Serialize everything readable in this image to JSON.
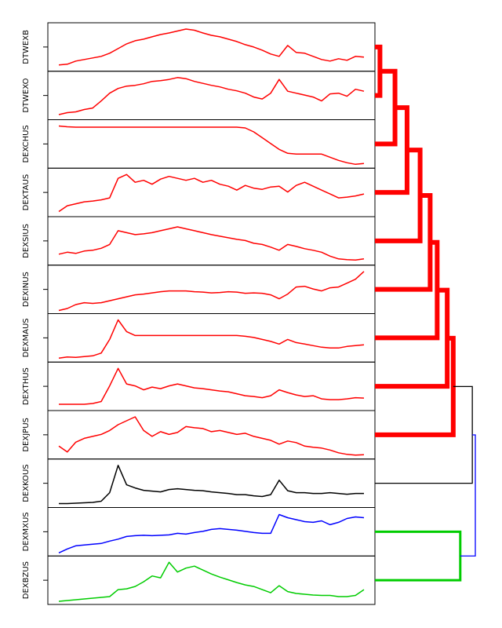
{
  "chart_data": {
    "type": "line",
    "title": "",
    "xlabel": "",
    "ylabel": "",
    "grid": false,
    "panels": [
      {
        "name": "DTWEXB",
        "color": "#ff0000",
        "values": [
          0.08,
          0.1,
          0.18,
          0.22,
          0.26,
          0.3,
          0.38,
          0.5,
          0.62,
          0.7,
          0.74,
          0.8,
          0.86,
          0.9,
          0.95,
          1.0,
          0.97,
          0.9,
          0.84,
          0.8,
          0.74,
          0.68,
          0.6,
          0.54,
          0.46,
          0.36,
          0.3,
          0.58,
          0.4,
          0.38,
          0.3,
          0.22,
          0.18,
          0.24,
          0.2,
          0.3,
          0.28
        ]
      },
      {
        "name": "DTWEXO",
        "color": "#ff0000",
        "values": [
          0.05,
          0.1,
          0.12,
          0.18,
          0.22,
          0.4,
          0.6,
          0.72,
          0.78,
          0.8,
          0.84,
          0.9,
          0.92,
          0.95,
          1.0,
          0.97,
          0.9,
          0.85,
          0.8,
          0.76,
          0.7,
          0.66,
          0.6,
          0.5,
          0.45,
          0.6,
          0.95,
          0.65,
          0.6,
          0.55,
          0.5,
          0.4,
          0.58,
          0.6,
          0.52,
          0.7,
          0.65
        ]
      },
      {
        "name": "DEXCHUS",
        "color": "#ff0000",
        "values": [
          1.0,
          0.98,
          0.97,
          0.97,
          0.97,
          0.97,
          0.97,
          0.97,
          0.97,
          0.97,
          0.97,
          0.97,
          0.97,
          0.97,
          0.97,
          0.97,
          0.97,
          0.97,
          0.97,
          0.97,
          0.97,
          0.97,
          0.95,
          0.85,
          0.7,
          0.55,
          0.4,
          0.3,
          0.28,
          0.28,
          0.28,
          0.28,
          0.2,
          0.12,
          0.06,
          0.02,
          0.04
        ]
      },
      {
        "name": "DEXTAUS",
        "color": "#ff0000",
        "values": [
          0.05,
          0.2,
          0.25,
          0.3,
          0.32,
          0.35,
          0.4,
          0.9,
          1.0,
          0.8,
          0.85,
          0.75,
          0.88,
          0.95,
          0.9,
          0.85,
          0.9,
          0.8,
          0.85,
          0.75,
          0.7,
          0.6,
          0.72,
          0.65,
          0.62,
          0.68,
          0.7,
          0.55,
          0.72,
          0.8,
          0.7,
          0.6,
          0.5,
          0.4,
          0.42,
          0.45,
          0.5
        ]
      },
      {
        "name": "DEXSIUS",
        "color": "#ff0000",
        "values": [
          0.2,
          0.25,
          0.22,
          0.28,
          0.3,
          0.35,
          0.45,
          0.8,
          0.75,
          0.7,
          0.72,
          0.75,
          0.8,
          0.85,
          0.9,
          0.85,
          0.8,
          0.75,
          0.7,
          0.66,
          0.62,
          0.58,
          0.55,
          0.48,
          0.45,
          0.38,
          0.3,
          0.45,
          0.4,
          0.34,
          0.3,
          0.25,
          0.15,
          0.08,
          0.06,
          0.05,
          0.08
        ]
      },
      {
        "name": "DEXINUS",
        "color": "#ff0000",
        "values": [
          0.0,
          0.05,
          0.15,
          0.2,
          0.18,
          0.2,
          0.25,
          0.3,
          0.35,
          0.4,
          0.42,
          0.45,
          0.48,
          0.5,
          0.5,
          0.5,
          0.48,
          0.47,
          0.45,
          0.46,
          0.48,
          0.47,
          0.44,
          0.45,
          0.44,
          0.4,
          0.3,
          0.42,
          0.6,
          0.62,
          0.55,
          0.5,
          0.58,
          0.6,
          0.7,
          0.8,
          1.0
        ]
      },
      {
        "name": "DEXMAUS",
        "color": "#ff0000",
        "values": [
          0.02,
          0.05,
          0.04,
          0.06,
          0.08,
          0.15,
          0.5,
          1.0,
          0.7,
          0.6,
          0.6,
          0.6,
          0.6,
          0.6,
          0.6,
          0.6,
          0.6,
          0.6,
          0.6,
          0.6,
          0.6,
          0.6,
          0.58,
          0.55,
          0.5,
          0.45,
          0.38,
          0.5,
          0.42,
          0.38,
          0.34,
          0.3,
          0.28,
          0.28,
          0.32,
          0.34,
          0.36
        ]
      },
      {
        "name": "DEXTHUS",
        "color": "#ff0000",
        "values": [
          0.08,
          0.08,
          0.08,
          0.08,
          0.1,
          0.15,
          0.55,
          1.0,
          0.6,
          0.55,
          0.45,
          0.52,
          0.48,
          0.55,
          0.6,
          0.55,
          0.5,
          0.48,
          0.45,
          0.42,
          0.4,
          0.35,
          0.3,
          0.28,
          0.25,
          0.3,
          0.45,
          0.38,
          0.32,
          0.28,
          0.3,
          0.22,
          0.2,
          0.2,
          0.22,
          0.25,
          0.24
        ]
      },
      {
        "name": "DEXJPUS",
        "color": "#ff0000",
        "values": [
          0.25,
          0.1,
          0.35,
          0.45,
          0.5,
          0.55,
          0.65,
          0.8,
          0.9,
          1.0,
          0.65,
          0.5,
          0.62,
          0.55,
          0.6,
          0.75,
          0.72,
          0.7,
          0.62,
          0.65,
          0.6,
          0.55,
          0.58,
          0.5,
          0.45,
          0.4,
          0.3,
          0.38,
          0.34,
          0.25,
          0.22,
          0.2,
          0.15,
          0.08,
          0.04,
          0.02,
          0.03
        ]
      },
      {
        "name": "DEXKOUS",
        "color": "#000000",
        "values": [
          0.02,
          0.02,
          0.03,
          0.04,
          0.05,
          0.08,
          0.3,
          1.0,
          0.5,
          0.42,
          0.36,
          0.34,
          0.32,
          0.38,
          0.4,
          0.38,
          0.36,
          0.35,
          0.32,
          0.3,
          0.28,
          0.25,
          0.25,
          0.22,
          0.2,
          0.25,
          0.62,
          0.35,
          0.3,
          0.3,
          0.28,
          0.28,
          0.3,
          0.28,
          0.26,
          0.28,
          0.28
        ]
      },
      {
        "name": "DEXMXUS",
        "color": "#0000ff",
        "values": [
          0.0,
          0.1,
          0.18,
          0.2,
          0.22,
          0.24,
          0.3,
          0.35,
          0.42,
          0.44,
          0.45,
          0.44,
          0.45,
          0.46,
          0.5,
          0.48,
          0.52,
          0.55,
          0.6,
          0.62,
          0.6,
          0.58,
          0.55,
          0.52,
          0.5,
          0.5,
          0.98,
          0.9,
          0.85,
          0.8,
          0.78,
          0.82,
          0.72,
          0.78,
          0.88,
          0.92,
          0.9
        ]
      },
      {
        "name": "DEXBZUS",
        "color": "#00cc00",
        "values": [
          0.0,
          0.02,
          0.04,
          0.06,
          0.08,
          0.1,
          0.12,
          0.3,
          0.32,
          0.38,
          0.5,
          0.65,
          0.6,
          1.0,
          0.75,
          0.85,
          0.9,
          0.8,
          0.7,
          0.62,
          0.55,
          0.48,
          0.42,
          0.38,
          0.3,
          0.22,
          0.4,
          0.25,
          0.2,
          0.18,
          0.16,
          0.15,
          0.15,
          0.12,
          0.12,
          0.15,
          0.3
        ]
      }
    ],
    "dendrogram": {
      "merges": [
        {
          "left": "DTWEXB",
          "right": "DTWEXO",
          "height": 0.05,
          "color": "#ff0000"
        },
        {
          "left": "m1",
          "right": "DEXCHUS",
          "height": 0.2,
          "color": "#ff0000"
        },
        {
          "left": "m2",
          "right": "DEXTAUS",
          "height": 0.32,
          "color": "#ff0000"
        },
        {
          "left": "m3",
          "right": "DEXSIUS",
          "height": 0.45,
          "color": "#ff0000"
        },
        {
          "left": "m4",
          "right": "DEXINUS",
          "height": 0.55,
          "color": "#ff0000"
        },
        {
          "left": "m5",
          "right": "DEXMAUS",
          "height": 0.62,
          "color": "#ff0000"
        },
        {
          "left": "m6",
          "right": "DEXTHUS",
          "height": 0.72,
          "color": "#ff0000"
        },
        {
          "left": "m7",
          "right": "DEXJPUS",
          "height": 0.78,
          "color": "#ff0000"
        },
        {
          "left": "m8",
          "right": "DEXKOUS",
          "height": 0.97,
          "color": "#000000"
        },
        {
          "left": "DEXMXUS",
          "right": "DEXBZUS",
          "height": 0.85,
          "color": "#00cc00"
        },
        {
          "left": "m9",
          "right": "m10",
          "height": 1.0,
          "color": "#0000ff"
        }
      ]
    }
  }
}
